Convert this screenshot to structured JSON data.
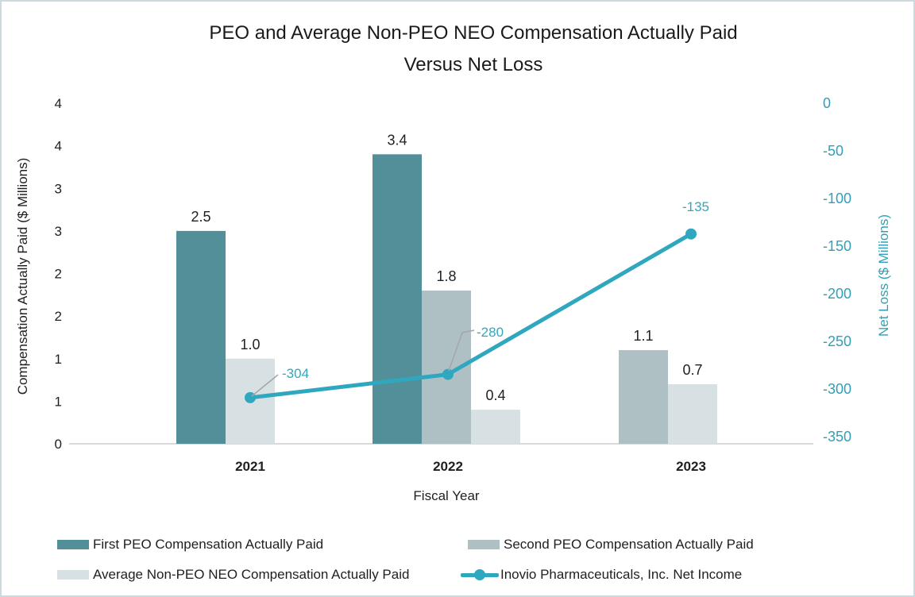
{
  "title": {
    "line1": "PEO and Average Non-PEO NEO Compensation Actually Paid",
    "line2": "Versus Net Loss"
  },
  "chart_data": {
    "type": "combo-bar-line",
    "categories": [
      "2021",
      "2022",
      "2023"
    ],
    "x_axis_label": "Fiscal Year",
    "left_axis": {
      "label": "Compensation Actually Paid ($ Millions)",
      "tick_labels": [
        "4",
        "4",
        "3",
        "3",
        "2",
        "2",
        "1",
        "1",
        "0"
      ],
      "range": [
        0,
        4
      ],
      "tick_step": 0.5,
      "grid": false
    },
    "right_axis": {
      "label": "Net Loss ($ Millions)",
      "tick_labels": [
        "0",
        "-50",
        "-100",
        "-150",
        "-200",
        "-250",
        "-300",
        "-350"
      ],
      "range": [
        0,
        -350
      ],
      "tick_step": -50,
      "text_color": "#319fb5"
    },
    "series": [
      {
        "name": "First PEO Compensation Actually Paid",
        "type": "bar",
        "color": "#538f98",
        "values": [
          2.5,
          3.4,
          null
        ]
      },
      {
        "name": "Second PEO Compensation Actually Paid",
        "type": "bar",
        "color": "#afc0c4",
        "values": [
          null,
          1.8,
          1.1
        ]
      },
      {
        "name": "Average Non-PEO NEO Compensation Actually Paid",
        "type": "bar",
        "color": "#d7e1e4",
        "values": [
          1.0,
          0.4,
          0.7
        ]
      },
      {
        "name": "Inovio Pharmaceuticals, Inc. Net Income",
        "type": "line",
        "color": "#2fa8bf",
        "values": [
          -304,
          -280,
          -135
        ],
        "data_labels": [
          "-304",
          "-280",
          "-135"
        ]
      }
    ],
    "bar_data_labels": [
      [
        "2.5",
        "1.0"
      ],
      [
        "3.4",
        "1.8",
        "0.4"
      ],
      [
        "1.1",
        "0.7"
      ]
    ],
    "legend_position": "bottom",
    "colors": {
      "leader_line": "#a6a6a6",
      "axis_line": "#d9d9d9",
      "text": "#1f1f1f",
      "border": "#ccd9dd",
      "background": "#ffffff"
    }
  }
}
